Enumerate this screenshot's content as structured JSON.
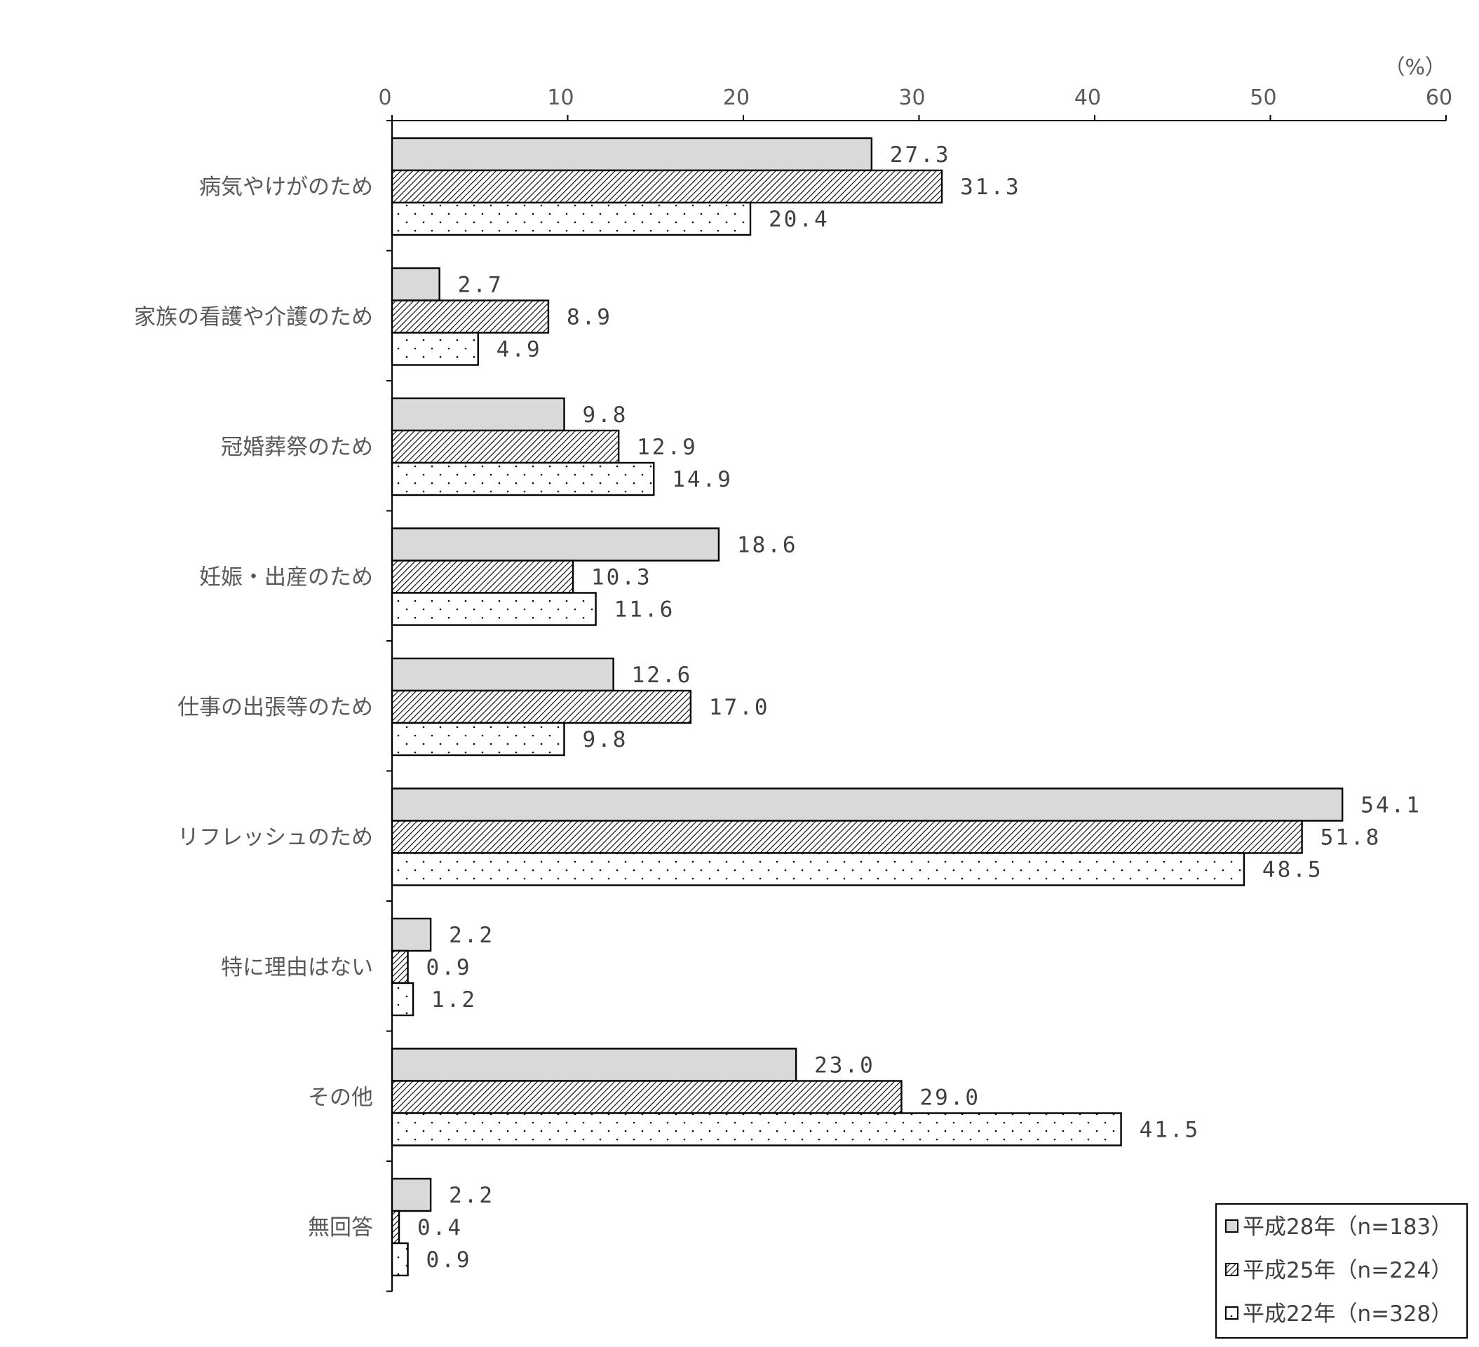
{
  "chart_data": {
    "type": "bar",
    "orientation": "horizontal",
    "unit_label": "（%）",
    "xlim": [
      0,
      60
    ],
    "x_ticks": [
      "0",
      "10",
      "20",
      "30",
      "40",
      "50",
      "60"
    ],
    "categories": [
      "病気やけがのため",
      "家族の看護や介護のため",
      "冠婚葬祭のため",
      "妊娠・出産のため",
      "仕事の出張等のため",
      "リフレッシュのため",
      "特に理由はない",
      "その他",
      "無回答"
    ],
    "series": [
      {
        "name": "平成28年（n=183）",
        "pattern": "solid-gray",
        "color": "#d9d9d9",
        "values": [
          27.3,
          2.7,
          9.8,
          18.6,
          12.6,
          54.1,
          2.2,
          23.0,
          2.2
        ],
        "labels": [
          "27.3",
          "2.7",
          "9.8",
          "18.6",
          "12.6",
          "54.1",
          "2.2",
          "23.0",
          "2.2"
        ]
      },
      {
        "name": "平成25年（n=224）",
        "pattern": "diagonal-hatch",
        "color": "#000000",
        "values": [
          31.3,
          8.9,
          12.9,
          10.3,
          17.0,
          51.8,
          0.9,
          29.0,
          0.4
        ],
        "labels": [
          "31.3",
          "8.9",
          "12.9",
          "10.3",
          "17.0",
          "51.8",
          "0.9",
          "29.0",
          "0.4"
        ]
      },
      {
        "name": "平成22年（n=328）",
        "pattern": "dots",
        "color": "#ffffff",
        "values": [
          20.4,
          4.9,
          14.9,
          11.6,
          9.8,
          48.5,
          1.2,
          41.5,
          0.9
        ],
        "labels": [
          "20.4",
          "4.9",
          "14.9",
          "11.6",
          "9.8",
          "48.5",
          "1.2",
          "41.5",
          "0.9"
        ]
      }
    ],
    "legend_position": "bottom-right",
    "grid": false
  }
}
